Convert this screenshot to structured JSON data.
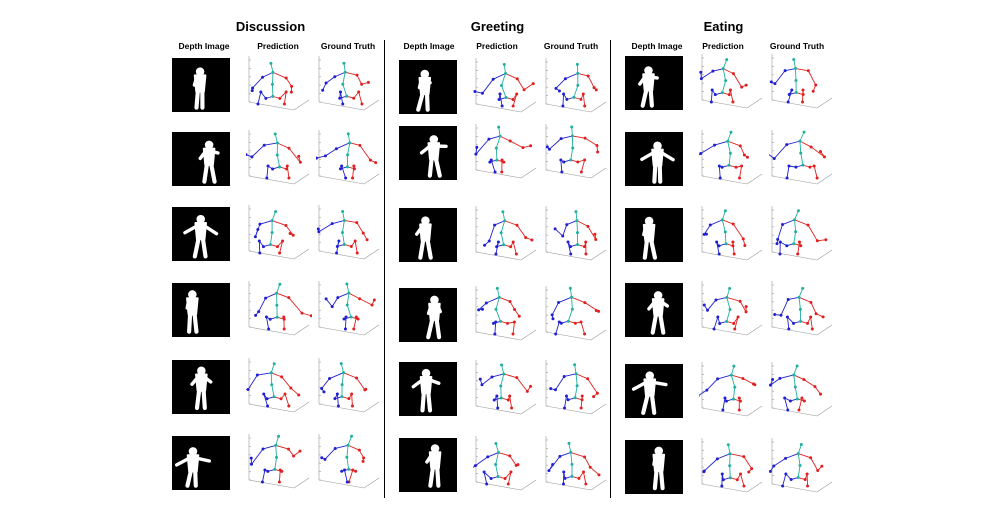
{
  "groups": [
    {
      "title": "Discussion",
      "columns": [
        "Depth Image",
        "Prediction",
        "Ground Truth"
      ],
      "rows": 6
    },
    {
      "title": "Greeting",
      "columns": [
        "Depth Image",
        "Prediction",
        "Ground Truth"
      ],
      "rows": 6
    },
    {
      "title": "Eating",
      "columns": [
        "Depth Image",
        "Prediction",
        "Ground Truth"
      ],
      "rows": 6
    }
  ],
  "colors": {
    "left_limb": "#e02020",
    "right_limb": "#2020d0",
    "torso": "#20b0a0",
    "axis": "#9a9a9a",
    "depth_background": "#000000",
    "silhouette": "#ffffff"
  }
}
